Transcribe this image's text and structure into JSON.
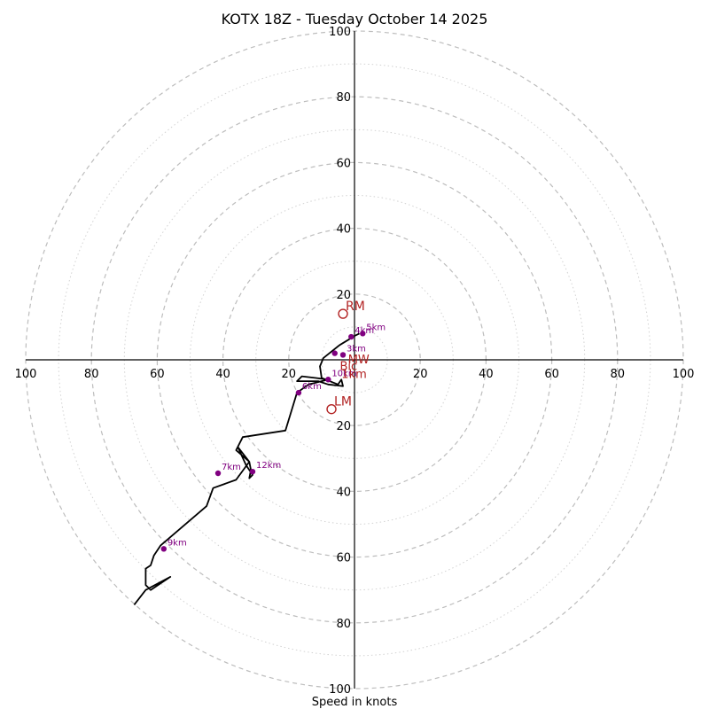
{
  "chart_data": {
    "type": "hodograph",
    "title": "KOTX 18Z - Tuesday October 14 2025",
    "xlabel": "Speed in knots",
    "range": [
      -100,
      100
    ],
    "major_rings": [
      20,
      40,
      60,
      80,
      100
    ],
    "minor_rings": [
      10,
      30,
      50,
      70,
      90
    ],
    "x_tick_labels": [
      "100",
      "80",
      "60",
      "40",
      "20",
      "20",
      "40",
      "60",
      "80",
      "100"
    ],
    "x_tick_values": [
      -100,
      -80,
      -60,
      -40,
      -20,
      20,
      40,
      60,
      80,
      100
    ],
    "y_tick_labels_upper": [
      "100",
      "80",
      "60",
      "40",
      "20"
    ],
    "y_tick_values_upper": [
      100,
      80,
      60,
      40,
      20
    ],
    "y_tick_labels_lower": [
      "20",
      "40",
      "60",
      "80",
      "100"
    ],
    "y_tick_values_lower": [
      -20,
      -40,
      -60,
      -80,
      -100
    ],
    "trace": [
      [
        1.5,
        8
      ],
      [
        -0.5,
        7
      ],
      [
        -2,
        6
      ],
      [
        -4.5,
        4.5
      ],
      [
        -7,
        2.5
      ],
      [
        -9.5,
        0.5
      ],
      [
        -10.5,
        -2
      ],
      [
        -10,
        -5.5
      ],
      [
        -5,
        -7.5
      ],
      [
        -4,
        -6
      ],
      [
        -3.5,
        -8
      ],
      [
        -8,
        -7.5
      ],
      [
        -11,
        -6.5
      ],
      [
        -15,
        -6.5
      ],
      [
        -17.5,
        -6.5
      ],
      [
        -16,
        -5
      ],
      [
        -12,
        -5.5
      ],
      [
        -8,
        -6
      ],
      [
        -12,
        -7
      ],
      [
        -14,
        -7.5
      ],
      [
        -17.5,
        -10
      ],
      [
        -21,
        -21.5
      ],
      [
        -34,
        -23.5
      ],
      [
        -36,
        -27.5
      ],
      [
        -32,
        -31
      ],
      [
        -31.5,
        -33.5
      ],
      [
        -32,
        -36
      ],
      [
        -31,
        -35
      ],
      [
        -33,
        -32
      ],
      [
        -35.5,
        -26.5
      ],
      [
        -32,
        -31
      ],
      [
        -36,
        -36.5
      ],
      [
        -43,
        -39
      ],
      [
        -45,
        -44.5
      ],
      [
        -59,
        -56.5
      ],
      [
        -61,
        -59.5
      ],
      [
        -62,
        -62.5
      ],
      [
        -63.5,
        -63.5
      ],
      [
        -63.5,
        -68.5
      ],
      [
        -62,
        -70
      ],
      [
        -56,
        -66
      ],
      [
        -63.5,
        -70
      ],
      [
        -67,
        -74.5
      ]
    ],
    "height_markers": [
      {
        "label": "",
        "u": -6,
        "v": 2
      },
      {
        "label": "3km",
        "u": -3.5,
        "v": 1.5
      },
      {
        "label": "4km",
        "u": -1,
        "v": 7
      },
      {
        "label": "5km",
        "u": 2.5,
        "v": 8
      },
      {
        "label": "10km",
        "u": -8,
        "v": -6
      },
      {
        "label": "6km",
        "u": -17,
        "v": -10
      },
      {
        "label": "12km",
        "u": -31,
        "v": -34
      },
      {
        "label": "7km",
        "u": -41.5,
        "v": -34.5
      },
      {
        "label": "9km",
        "u": -58,
        "v": -57.5
      }
    ],
    "vector_labels": [
      {
        "label": "1km",
        "u": -4.5,
        "v": -4.5
      },
      {
        "label": "MW",
        "u": -2.5,
        "v": 0
      },
      {
        "label": "Bic",
        "u": -5,
        "v": -2
      }
    ],
    "storm_motion": [
      {
        "label": "RM",
        "u": -3.5,
        "v": 14
      },
      {
        "label": "LM",
        "u": -7,
        "v": -15
      }
    ],
    "colors": {
      "trace": "#000000",
      "height_marker": "#800080",
      "storm_motion": "#b22222",
      "ring": "#bdbdbd"
    }
  }
}
